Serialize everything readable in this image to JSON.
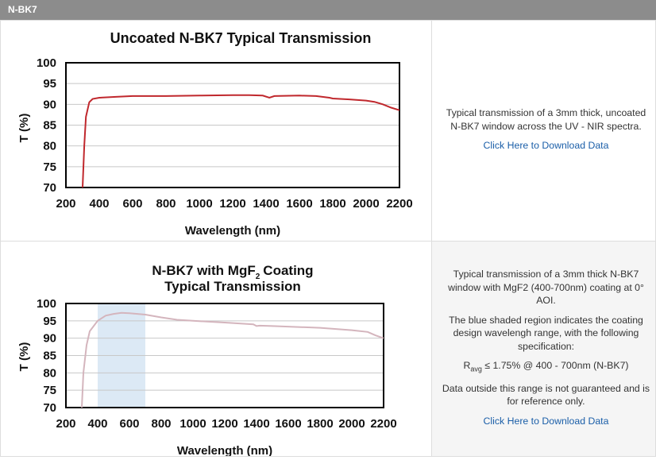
{
  "header": {
    "title": "N-BK7"
  },
  "chart_data": [
    {
      "type": "line",
      "title": "Uncoated N-BK7 Typical Transmission",
      "xlabel": "Wavelength (nm)",
      "ylabel": "T (%)",
      "x": [
        300,
        310,
        320,
        340,
        360,
        400,
        500,
        600,
        800,
        1000,
        1200,
        1300,
        1380,
        1420,
        1450,
        1600,
        1700,
        1780,
        1800,
        1900,
        2000,
        2050,
        2100,
        2150,
        2200
      ],
      "values": [
        70,
        80,
        87,
        90.5,
        91.3,
        91.6,
        91.8,
        92,
        92,
        92.1,
        92.2,
        92.2,
        92.1,
        91.6,
        92,
        92.1,
        92,
        91.6,
        91.4,
        91.2,
        90.9,
        90.6,
        90,
        89.2,
        88.6
      ],
      "color": "#c0282d",
      "xlim": [
        200,
        2200
      ],
      "xticks": [
        200,
        400,
        600,
        800,
        1000,
        1200,
        1400,
        1600,
        1800,
        2000,
        2200
      ],
      "ylim": [
        70,
        100
      ],
      "yticks": [
        70,
        75,
        80,
        85,
        90,
        95,
        100
      ],
      "grid": true
    },
    {
      "type": "line",
      "title_parts": [
        "N-BK7 with MgF",
        "2",
        "Coating"
      ],
      "subtitle": "Typical Transmission",
      "xlabel": "Wavelength (nm)",
      "ylabel": "T (%)",
      "x": [
        300,
        310,
        330,
        350,
        400,
        450,
        500,
        550,
        600,
        700,
        800,
        900,
        1000,
        1200,
        1380,
        1400,
        1420,
        1500,
        1800,
        2000,
        2100,
        2150,
        2200
      ],
      "values": [
        70,
        80,
        88,
        92,
        95,
        96.5,
        97,
        97.3,
        97.2,
        96.8,
        96,
        95.3,
        95,
        94.5,
        94,
        93.5,
        93.6,
        93.5,
        93,
        92.3,
        91.8,
        90.8,
        90
      ],
      "color": "#d4b5bd",
      "shaded_region": [
        400,
        700
      ],
      "shaded_color": "#dce9f5",
      "xlim": [
        200,
        2200
      ],
      "xticks": [
        200,
        400,
        600,
        800,
        1000,
        1200,
        1400,
        1600,
        1800,
        2000,
        2200
      ],
      "ylim": [
        70,
        100
      ],
      "yticks": [
        70,
        75,
        80,
        85,
        90,
        95,
        100
      ],
      "grid": true
    }
  ],
  "descriptions": [
    {
      "paragraphs": [
        "Typical transmission of a 3mm thick, uncoated N-BK7 window across the UV - NIR spectra."
      ],
      "link": "Click Here to Download Data"
    },
    {
      "paragraphs": [
        "Typical transmission of a 3mm thick N-BK7 window with MgF2 (400-700nm) coating at 0° AOI.",
        "The blue shaded region indicates the coating design wavelengh range, with the following specification:"
      ],
      "spec": {
        "symbol": "R",
        "subscript": "avg",
        "text": "≤ 1.75% @ 400 - 700nm (N-BK7)"
      },
      "note": "Data outside this range is not guaranteed and is for reference only.",
      "link": "Click Here to Download Data"
    }
  ]
}
